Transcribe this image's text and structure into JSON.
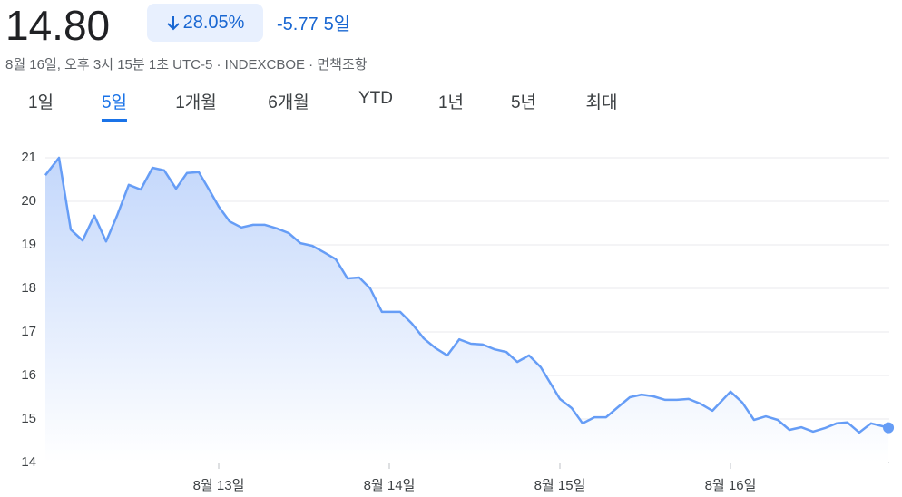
{
  "header": {
    "price": "14.80",
    "change_percent": "28.05%",
    "change": "-5.77",
    "period": "5일",
    "subtitle": "8월 16일, 오후 3시 15분 1초 UTC-5 · INDEXCBOE · 면책조항"
  },
  "tabs": {
    "labels": [
      "1일",
      "5일",
      "1개월",
      "6개월",
      "YTD",
      "1년",
      "5년",
      "최대"
    ],
    "selected": 1
  },
  "chart_data": {
    "type": "line",
    "color": "#669df6",
    "grid": true,
    "x": [
      11.984,
      12.064,
      12.133,
      12.202,
      12.271,
      12.34,
      12.404,
      12.473,
      12.543,
      12.612,
      12.681,
      12.75,
      12.814,
      12.883,
      12.952,
      13.0,
      13.064,
      13.133,
      13.202,
      13.271,
      13.34,
      13.41,
      13.479,
      13.548,
      13.617,
      13.686,
      13.755,
      13.824,
      13.888,
      13.957,
      14.064,
      14.133,
      14.202,
      14.271,
      14.34,
      14.41,
      14.479,
      14.548,
      14.617,
      14.686,
      14.75,
      14.819,
      14.888,
      15.0,
      15.069,
      15.133,
      15.202,
      15.271,
      15.34,
      15.41,
      15.479,
      15.548,
      15.617,
      15.686,
      15.755,
      15.824,
      15.894,
      16.0,
      16.069,
      16.138,
      16.207,
      16.277,
      16.346,
      16.415,
      16.484,
      16.553,
      16.622,
      16.686,
      16.755,
      16.824,
      16.926
    ],
    "values": [
      20.6,
      21.0,
      19.35,
      19.1,
      19.67,
      19.08,
      19.67,
      20.38,
      20.27,
      20.77,
      20.71,
      20.29,
      20.65,
      20.67,
      20.21,
      19.88,
      19.54,
      19.4,
      19.46,
      19.46,
      19.38,
      19.27,
      19.04,
      18.98,
      18.83,
      18.67,
      18.23,
      18.25,
      18.0,
      17.46,
      17.46,
      17.19,
      16.85,
      16.63,
      16.46,
      16.83,
      16.73,
      16.71,
      16.6,
      16.54,
      16.31,
      16.46,
      16.19,
      15.46,
      15.25,
      14.9,
      15.04,
      15.04,
      15.27,
      15.5,
      15.56,
      15.52,
      15.44,
      15.44,
      15.46,
      15.35,
      15.19,
      15.63,
      15.38,
      14.98,
      15.06,
      14.98,
      14.75,
      14.81,
      14.71,
      14.79,
      14.9,
      14.92,
      14.69,
      14.9,
      14.8
    ],
    "xlim": [
      11.984,
      16.931
    ],
    "xticks": [
      {
        "value": 13,
        "label": "8월 13일"
      },
      {
        "value": 14,
        "label": "8월 14일"
      },
      {
        "value": 15,
        "label": "8월 15일"
      },
      {
        "value": 16,
        "label": "8월 16일"
      }
    ],
    "ylim": [
      14,
      21
    ],
    "yticks": [
      14,
      15,
      16,
      17,
      18,
      19,
      20,
      21
    ]
  }
}
